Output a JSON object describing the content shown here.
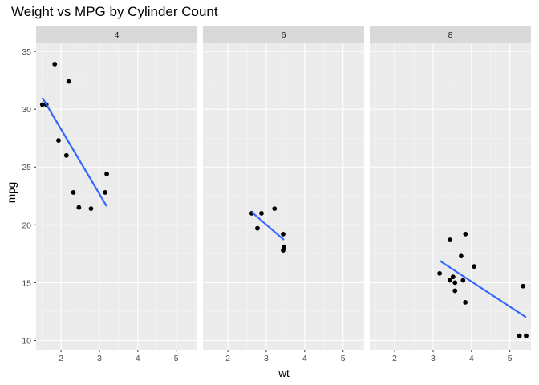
{
  "chart_data": {
    "type": "scatter",
    "title": "Weight vs MPG by Cylinder Count",
    "xlabel": "wt",
    "ylabel": "mpg",
    "xlim": [
      1.35,
      5.55
    ],
    "ylim": [
      9.2,
      35.7
    ],
    "x_ticks": [
      2,
      3,
      4,
      5
    ],
    "y_ticks": [
      10,
      15,
      20,
      25,
      30,
      35
    ],
    "x_tick_labels": [
      "2",
      "3",
      "4",
      "5"
    ],
    "y_tick_labels": [
      "10",
      "15",
      "20",
      "25",
      "30",
      "35"
    ],
    "grid": true,
    "legend": "none",
    "fit_line_color": "#3366ff",
    "point_color": "#000000",
    "panel_background": "#ebebeb",
    "strip_background": "#d9d9d9",
    "facets": [
      {
        "label": "4",
        "points": [
          {
            "x": 2.32,
            "y": 22.8
          },
          {
            "x": 3.19,
            "y": 24.4
          },
          {
            "x": 3.15,
            "y": 22.8
          },
          {
            "x": 2.2,
            "y": 32.4
          },
          {
            "x": 1.615,
            "y": 30.4
          },
          {
            "x": 1.835,
            "y": 33.9
          },
          {
            "x": 2.465,
            "y": 21.5
          },
          {
            "x": 1.935,
            "y": 27.3
          },
          {
            "x": 2.14,
            "y": 26.0
          },
          {
            "x": 1.513,
            "y": 30.4
          },
          {
            "x": 2.78,
            "y": 21.4
          }
        ],
        "fit": {
          "x": [
            1.513,
            3.19
          ],
          "y": [
            31.0,
            21.6
          ]
        }
      },
      {
        "label": "6",
        "points": [
          {
            "x": 2.62,
            "y": 21.0
          },
          {
            "x": 2.875,
            "y": 21.0
          },
          {
            "x": 3.215,
            "y": 21.4
          },
          {
            "x": 3.46,
            "y": 18.1
          },
          {
            "x": 3.44,
            "y": 19.2
          },
          {
            "x": 3.44,
            "y": 17.8
          },
          {
            "x": 2.77,
            "y": 19.7
          }
        ],
        "fit": {
          "x": [
            2.62,
            3.46
          ],
          "y": [
            21.1,
            18.7
          ]
        }
      },
      {
        "label": "8",
        "points": [
          {
            "x": 3.44,
            "y": 18.7
          },
          {
            "x": 3.57,
            "y": 14.3
          },
          {
            "x": 4.07,
            "y": 16.4
          },
          {
            "x": 3.73,
            "y": 17.3
          },
          {
            "x": 3.78,
            "y": 15.2
          },
          {
            "x": 5.25,
            "y": 10.4
          },
          {
            "x": 5.424,
            "y": 10.4
          },
          {
            "x": 5.345,
            "y": 14.7
          },
          {
            "x": 3.52,
            "y": 15.5
          },
          {
            "x": 3.435,
            "y": 15.2
          },
          {
            "x": 3.84,
            "y": 13.3
          },
          {
            "x": 3.845,
            "y": 19.2
          },
          {
            "x": 3.17,
            "y": 15.8
          },
          {
            "x": 3.57,
            "y": 15.0
          }
        ],
        "fit": {
          "x": [
            3.17,
            5.424
          ],
          "y": [
            16.9,
            12.0
          ]
        }
      }
    ]
  }
}
